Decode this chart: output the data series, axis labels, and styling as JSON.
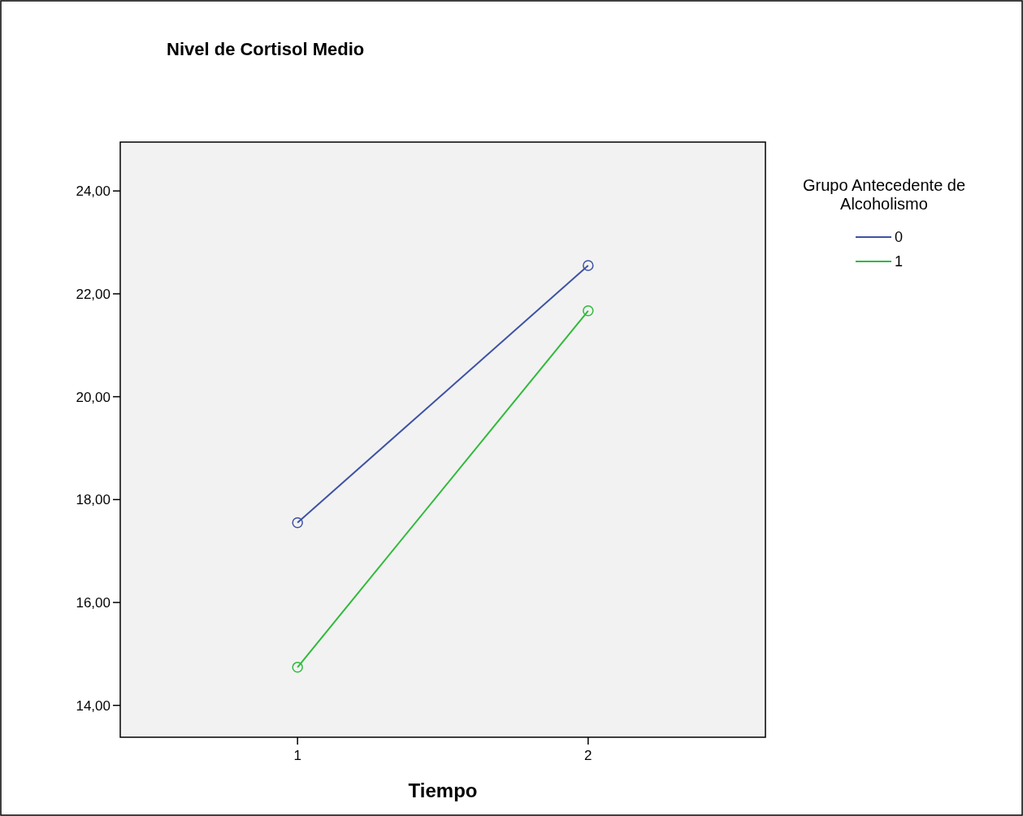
{
  "chart_data": {
    "type": "line",
    "title": "Nivel de Cortisol Medio",
    "xlabel": "Tiempo",
    "legend_title": "Grupo Antecedente de Alcoholismo",
    "categories": [
      "1",
      "2"
    ],
    "series": [
      {
        "name": "0",
        "color": "#3e53a4",
        "values": [
          17.55,
          22.55
        ]
      },
      {
        "name": "1",
        "color": "#2fba3b",
        "values": [
          14.74,
          21.67
        ]
      }
    ],
    "ylim": [
      13.38,
      24.95
    ],
    "yticks": [
      {
        "value": 14,
        "label": "14,00"
      },
      {
        "value": 16,
        "label": "16,00"
      },
      {
        "value": 18,
        "label": "18,00"
      },
      {
        "value": 20,
        "label": "20,00"
      },
      {
        "value": 22,
        "label": "22,00"
      },
      {
        "value": 24,
        "label": "24,00"
      }
    ],
    "marker": "circle",
    "line_style": "solid",
    "grid": false,
    "legend": "top right"
  }
}
